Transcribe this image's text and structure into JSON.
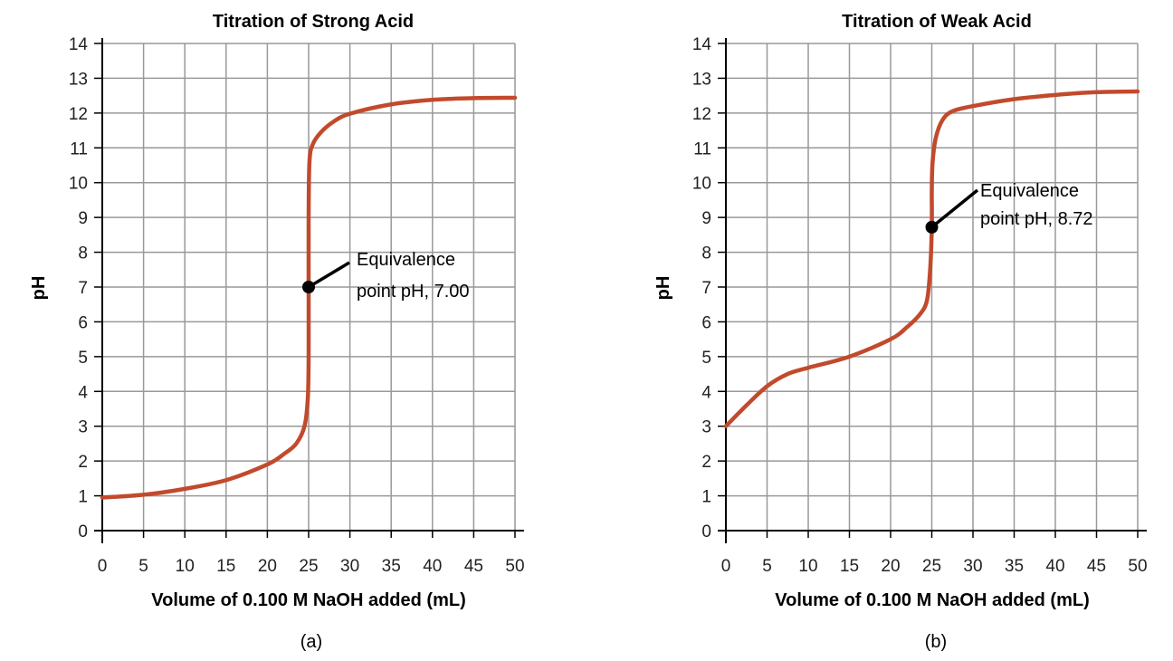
{
  "chart_data": [
    {
      "type": "line",
      "panel_label": "(a)",
      "title": "Titration of Strong Acid",
      "xlabel": "Volume of 0.100 M NaOH added (mL)",
      "ylabel": "pH",
      "xlim": [
        0,
        50
      ],
      "ylim": [
        0,
        14
      ],
      "xticks": [
        0,
        5,
        10,
        15,
        20,
        25,
        30,
        35,
        40,
        45,
        50
      ],
      "yticks": [
        0,
        1,
        2,
        3,
        4,
        5,
        6,
        7,
        8,
        9,
        10,
        11,
        12,
        13,
        14
      ],
      "grid": true,
      "line_color": "#c24a2c",
      "x": [
        0,
        5,
        10,
        15,
        20,
        22,
        23.5,
        24.5,
        24.9,
        25,
        25,
        25,
        25.1,
        25.5,
        26.5,
        28,
        30,
        35,
        40,
        45,
        50
      ],
      "y": [
        0.95,
        1.03,
        1.2,
        1.45,
        1.9,
        2.2,
        2.5,
        3.0,
        3.8,
        5,
        7,
        9,
        10.6,
        11.1,
        11.45,
        11.75,
        11.98,
        12.25,
        12.38,
        12.43,
        12.44
      ],
      "annotation": {
        "lines": [
          "Equivalence",
          "point pH, 7.00"
        ],
        "x": 25,
        "y": 7.0
      }
    },
    {
      "type": "line",
      "panel_label": "(b)",
      "title": "Titration of Weak Acid",
      "xlabel": "Volume of 0.100 M NaOH added (mL)",
      "ylabel": "pH",
      "xlim": [
        0,
        50
      ],
      "ylim": [
        0,
        14
      ],
      "xticks": [
        0,
        5,
        10,
        15,
        20,
        25,
        30,
        35,
        40,
        45,
        50
      ],
      "yticks": [
        0,
        1,
        2,
        3,
        4,
        5,
        6,
        7,
        8,
        9,
        10,
        11,
        12,
        13,
        14
      ],
      "grid": true,
      "line_color": "#c24a2c",
      "x": [
        0,
        2.5,
        5,
        7.5,
        10,
        15,
        20,
        22,
        23.5,
        24.4,
        24.8,
        25,
        25,
        25.1,
        25.5,
        26.3,
        27.5,
        30,
        35,
        40,
        45,
        50
      ],
      "y": [
        3.0,
        3.6,
        4.15,
        4.5,
        4.68,
        5.0,
        5.5,
        5.85,
        6.2,
        6.6,
        7.5,
        8.72,
        9.8,
        10.6,
        11.3,
        11.8,
        12.05,
        12.2,
        12.4,
        12.52,
        12.6,
        12.62
      ],
      "annotation": {
        "lines": [
          "Equivalence",
          "point pH, 8.72"
        ],
        "x": 25,
        "y": 8.72
      }
    }
  ]
}
